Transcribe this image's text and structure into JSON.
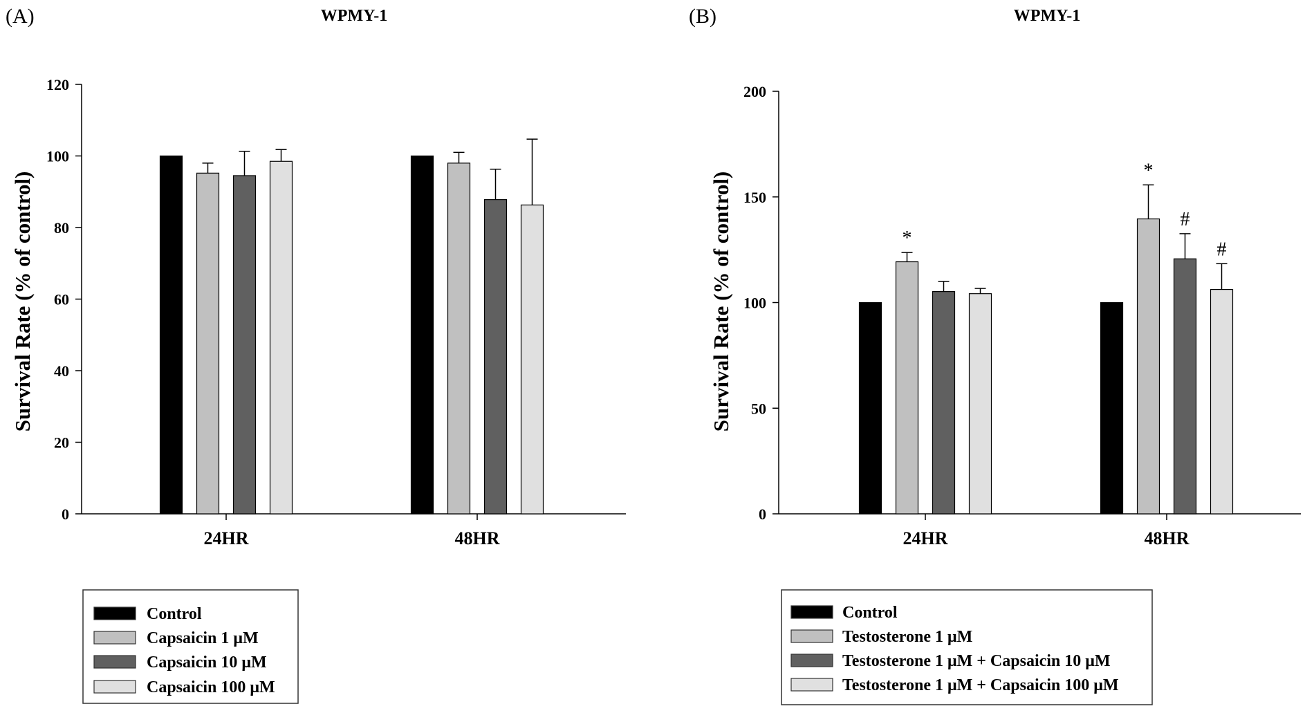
{
  "chart_data": [
    {
      "type": "bar",
      "panel_label": "(A)",
      "title": "WPMY-1",
      "xlabel": "",
      "ylabel": "Survival Rate (% of control)",
      "ylim": [
        0,
        120
      ],
      "yticks": [
        0,
        20,
        40,
        60,
        80,
        100,
        120
      ],
      "categories": [
        "24HR",
        "48HR"
      ],
      "grid": false,
      "legend_placement": "bottom-left (below plot)",
      "series": [
        {
          "name": "Control",
          "color": "#000000",
          "values": [
            100,
            100
          ],
          "error_upper": [
            100,
            100
          ],
          "annotations": [
            "",
            ""
          ]
        },
        {
          "name": "Capsaicin 1 μM",
          "color": "#c0c0c0",
          "values": [
            95.2,
            98.0
          ],
          "error_upper": [
            98.0,
            101.0
          ],
          "annotations": [
            "",
            ""
          ]
        },
        {
          "name": "Capsaicin 10 μM",
          "color": "#606060",
          "values": [
            94.5,
            87.8
          ],
          "error_upper": [
            101.3,
            96.3
          ],
          "annotations": [
            "",
            ""
          ]
        },
        {
          "name": "Capsaicin 100 μM",
          "color": "#e0e0e0",
          "values": [
            98.5,
            86.3
          ],
          "error_upper": [
            101.8,
            104.7
          ],
          "annotations": [
            "",
            ""
          ]
        }
      ]
    },
    {
      "type": "bar",
      "panel_label": "(B)",
      "title": "WPMY-1",
      "xlabel": "",
      "ylabel": "Survival Rate (% of control)",
      "ylim": [
        0,
        200
      ],
      "yticks": [
        0,
        50,
        100,
        150,
        200
      ],
      "categories": [
        "24HR",
        "48HR"
      ],
      "grid": false,
      "legend_placement": "bottom-left (below plot)",
      "series": [
        {
          "name": "Control",
          "color": "#000000",
          "values": [
            100,
            100
          ],
          "error_upper": [
            100,
            100
          ],
          "annotations": [
            "",
            ""
          ]
        },
        {
          "name": "Testosterone 1 μM",
          "color": "#c0c0c0",
          "values": [
            119.3,
            139.6
          ],
          "error_upper": [
            123.7,
            155.7
          ],
          "annotations": [
            "*",
            "*"
          ]
        },
        {
          "name": "Testosterone 1 μM + Capsaicin 10 μM",
          "color": "#606060",
          "values": [
            105.2,
            120.7
          ],
          "error_upper": [
            110.0,
            132.6
          ],
          "annotations": [
            "",
            "#"
          ]
        },
        {
          "name": "Testosterone 1 μM + Capsaicin 100 μM",
          "color": "#e0e0e0",
          "values": [
            104.2,
            106.2
          ],
          "error_upper": [
            106.7,
            118.4
          ],
          "annotations": [
            "",
            "#"
          ]
        }
      ]
    }
  ]
}
